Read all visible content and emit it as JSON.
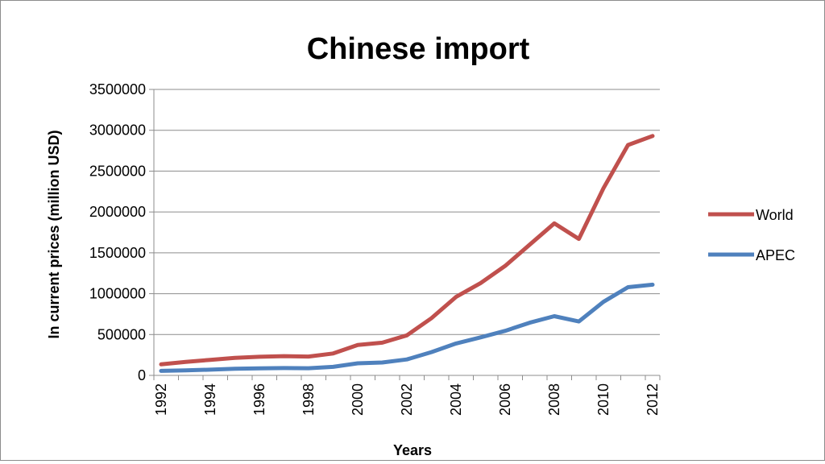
{
  "chart_data": {
    "type": "line",
    "title": "Chinese import",
    "xlabel": "Years",
    "ylabel": "In current prices (million USD)",
    "x": [
      1992,
      1993,
      1994,
      1995,
      1996,
      1997,
      1998,
      1999,
      2000,
      2001,
      2002,
      2003,
      2004,
      2005,
      2006,
      2007,
      2008,
      2009,
      2010,
      2011,
      2012
    ],
    "x_tick_labels": [
      "1992",
      "1994",
      "1996",
      "1998",
      "2000",
      "2002",
      "2004",
      "2006",
      "2008",
      "2010",
      "2012"
    ],
    "ylim": [
      0,
      3500000
    ],
    "y_ticks": [
      0,
      500000,
      1000000,
      1500000,
      2000000,
      2500000,
      3000000,
      3500000
    ],
    "y_tick_labels": [
      "0",
      "500000",
      "1000000",
      "1500000",
      "2000000",
      "2500000",
      "3000000",
      "3500000"
    ],
    "grid": "horizontal",
    "legend_position": "right",
    "series": [
      {
        "name": "World",
        "color": "#c0504d",
        "values": [
          135000,
          165000,
          190000,
          215000,
          228000,
          236000,
          231000,
          268000,
          372000,
          400000,
          490000,
          700000,
          960000,
          1130000,
          1340000,
          1600000,
          1860000,
          1670000,
          2290000,
          2820000,
          2930000
        ]
      },
      {
        "name": "APEC",
        "color": "#4f81bd",
        "values": [
          55000,
          62000,
          70000,
          82000,
          87000,
          90000,
          88000,
          105000,
          148000,
          158000,
          195000,
          285000,
          390000,
          465000,
          545000,
          645000,
          725000,
          660000,
          900000,
          1080000,
          1110000
        ]
      }
    ]
  }
}
